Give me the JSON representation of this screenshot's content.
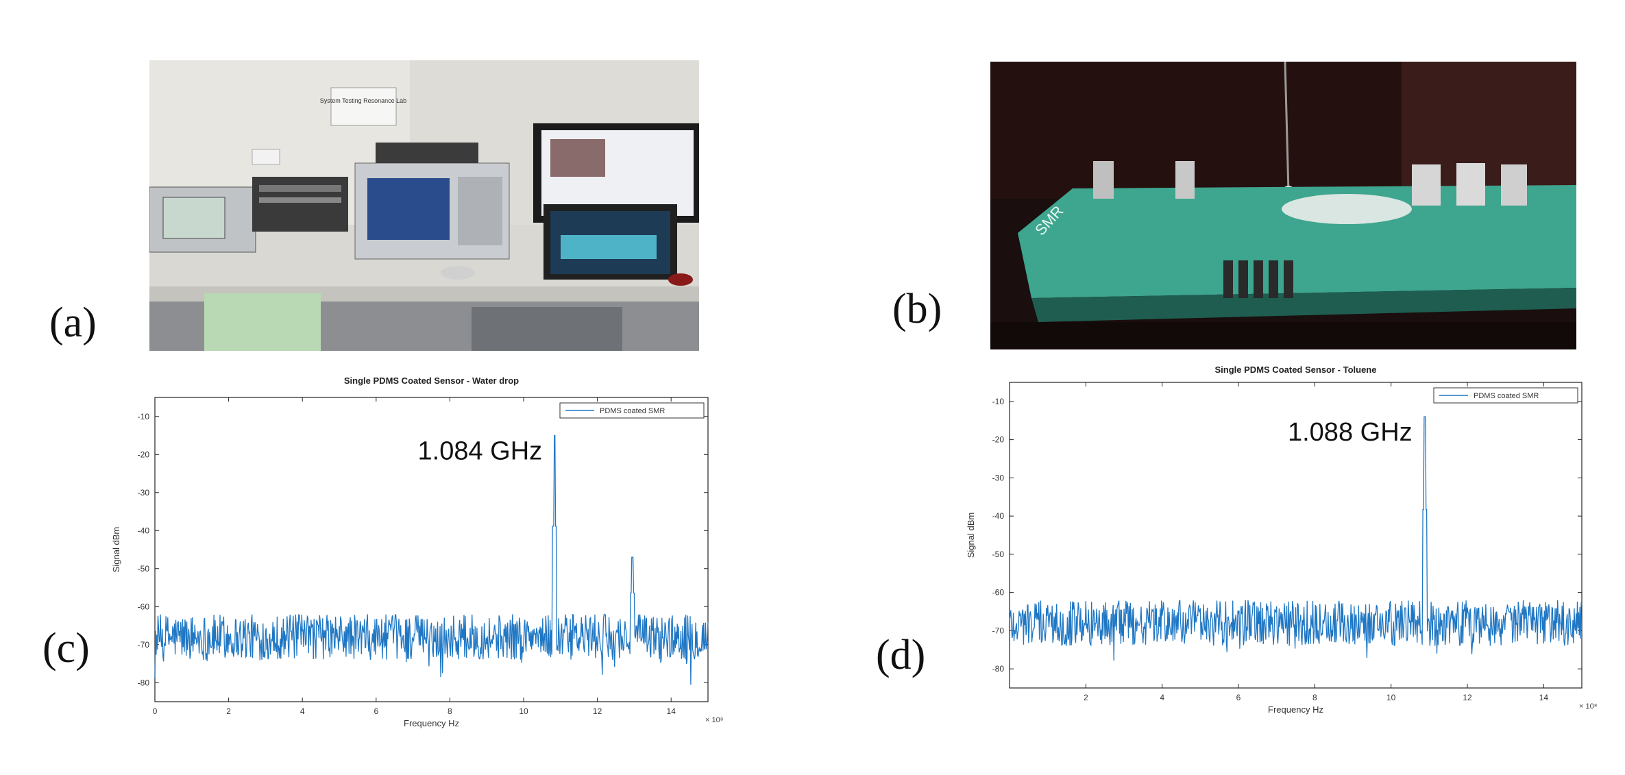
{
  "panels": {
    "a": "(a)",
    "b": "(b)",
    "c": "(c)",
    "d": "(d)"
  },
  "photo_a": {
    "sign_text": "System Testing\nResonance Lab"
  },
  "photo_b": {
    "board_text": "SMR"
  },
  "colors": {
    "series": "#1f77c4",
    "peak_label": "#111111"
  },
  "chart_data": [
    {
      "type": "line",
      "title": "Single PDMS Coated Sensor - Water drop",
      "xlabel": "Frequency Hz",
      "ylabel": "Signal dBm",
      "x_exponent": "× 10⁸",
      "xlim": [
        0,
        15
      ],
      "ylim": [
        -85,
        -5
      ],
      "xticks": [
        0,
        2,
        4,
        6,
        8,
        10,
        12,
        14
      ],
      "yticks": [
        -10,
        -20,
        -30,
        -40,
        -50,
        -60,
        -70,
        -80
      ],
      "legend": "PDMS coated SMR",
      "legend_position": "top-right",
      "grid": false,
      "annotation": {
        "text": "1.084 GHz",
        "x": 10.84,
        "y": -15
      },
      "noise_floor": {
        "mean": -68,
        "spread": 6
      },
      "peaks": [
        {
          "x": 10.84,
          "y": -15
        },
        {
          "x": 12.95,
          "y": -47
        }
      ],
      "series": [
        {
          "name": "PDMS coated SMR"
        }
      ]
    },
    {
      "type": "line",
      "title": "Single PDMS Coated Sensor - Toluene",
      "xlabel": "Frequency Hz",
      "ylabel": "Signal dBm",
      "x_exponent": "× 10⁸",
      "xlim": [
        0,
        15
      ],
      "ylim": [
        -85,
        -5
      ],
      "xticks": [
        2,
        4,
        6,
        8,
        10,
        12,
        14
      ],
      "yticks": [
        -10,
        -20,
        -30,
        -40,
        -50,
        -60,
        -70,
        -80
      ],
      "legend": "PDMS coated SMR",
      "legend_position": "top-right",
      "grid": false,
      "annotation": {
        "text": "1.088 GHz",
        "x": 10.88,
        "y": -14
      },
      "noise_floor": {
        "mean": -68,
        "spread": 6
      },
      "peaks": [
        {
          "x": 10.88,
          "y": -14
        }
      ],
      "series": [
        {
          "name": "PDMS coated SMR"
        }
      ]
    }
  ]
}
